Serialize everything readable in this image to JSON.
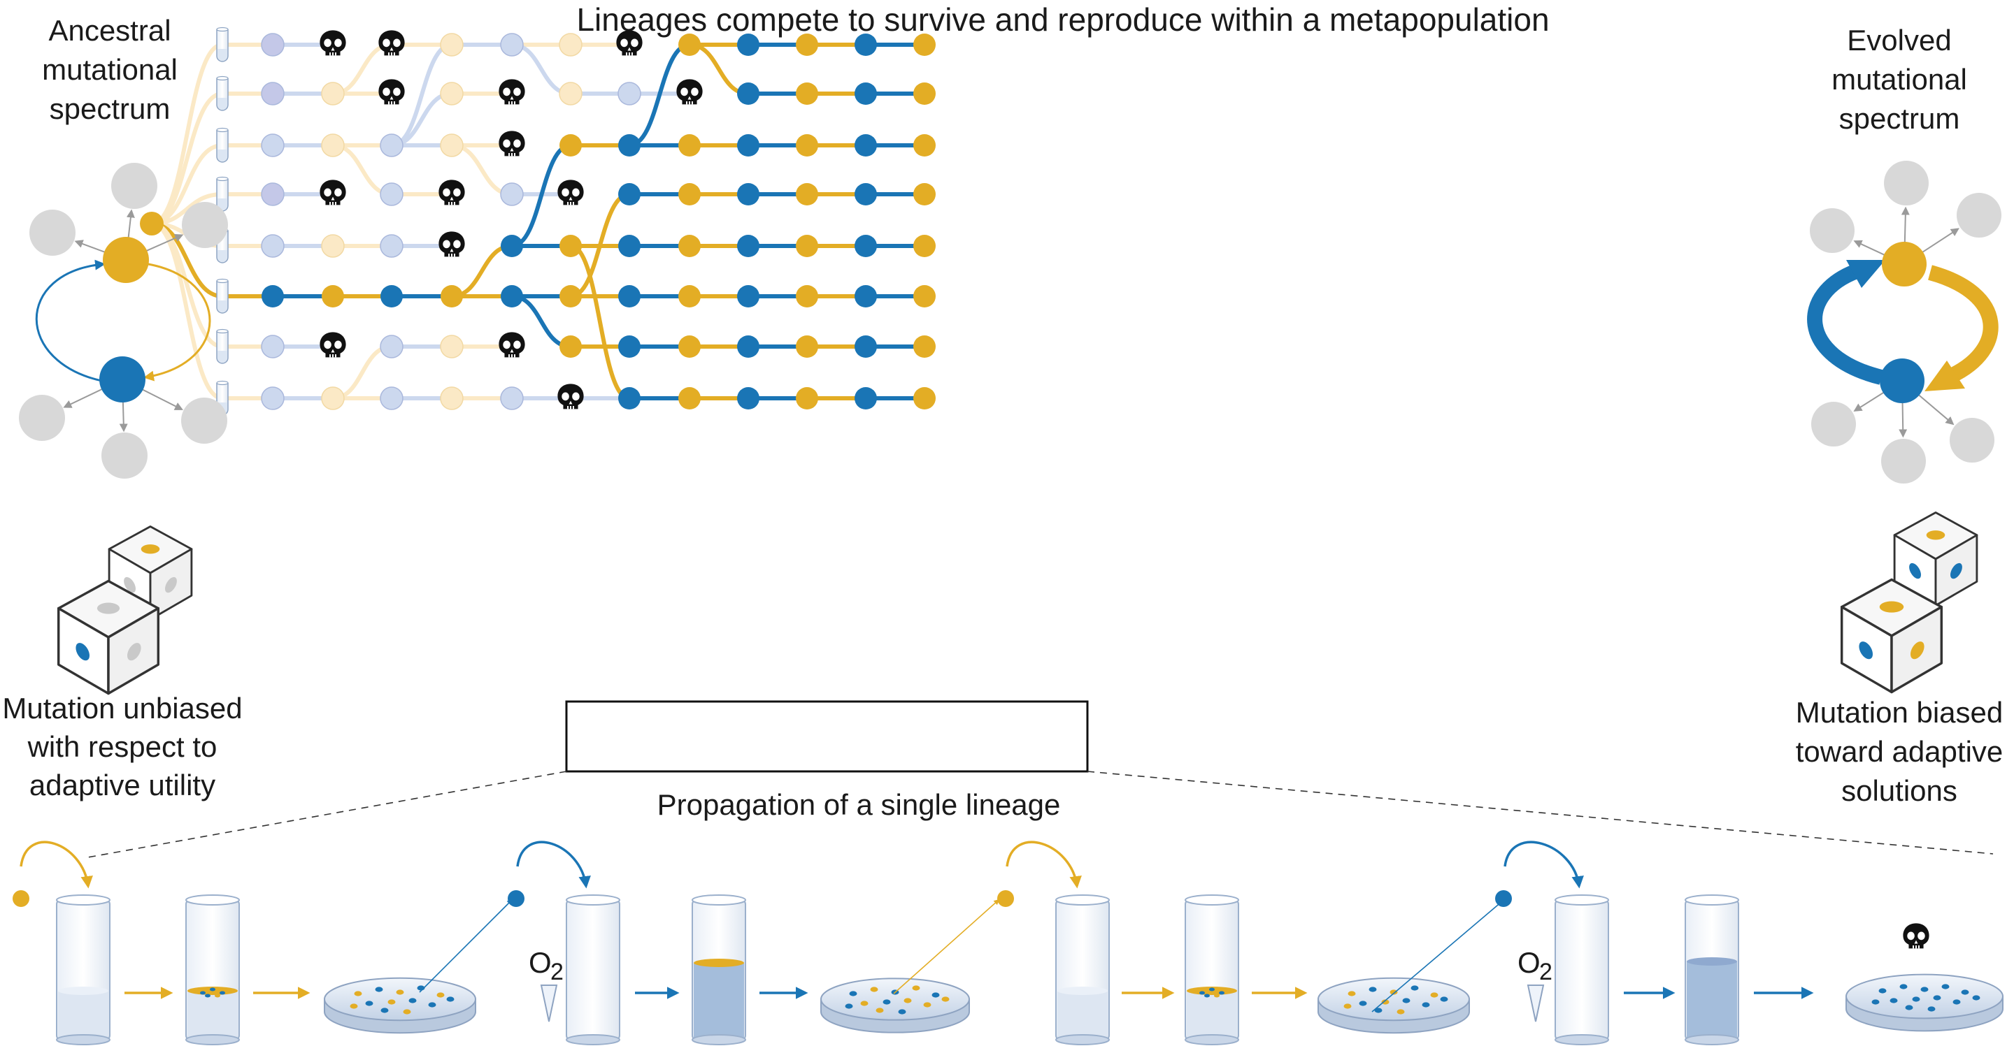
{
  "title": "Lineages compete to survive and reproduce within a metapopulation",
  "left_panel": {
    "heading": [
      "Ancestral",
      "mutational",
      "spectrum"
    ],
    "caption": [
      "Mutation unbiased",
      "with respect to",
      "adaptive utility"
    ]
  },
  "right_panel": {
    "heading": [
      "Evolved",
      "mutational",
      "spectrum"
    ],
    "caption": [
      "Mutation biased",
      "toward adaptive",
      "solutions"
    ]
  },
  "inset_label": "Propagation of a single lineage",
  "oxygen_label": "O",
  "oxygen_subscript": "2",
  "colors": {
    "gold": "#e3ad25",
    "blue": "#1a75b5",
    "gold_faded": "#fbe9c6",
    "blue_faded": "#ccd8ee",
    "gray_node": "#d8d8d8",
    "tube_fill": "#dce6f3"
  },
  "icons": [
    "skull-icon",
    "die-icon",
    "test-tube-icon",
    "petri-dish-icon",
    "flask-icon"
  ]
}
